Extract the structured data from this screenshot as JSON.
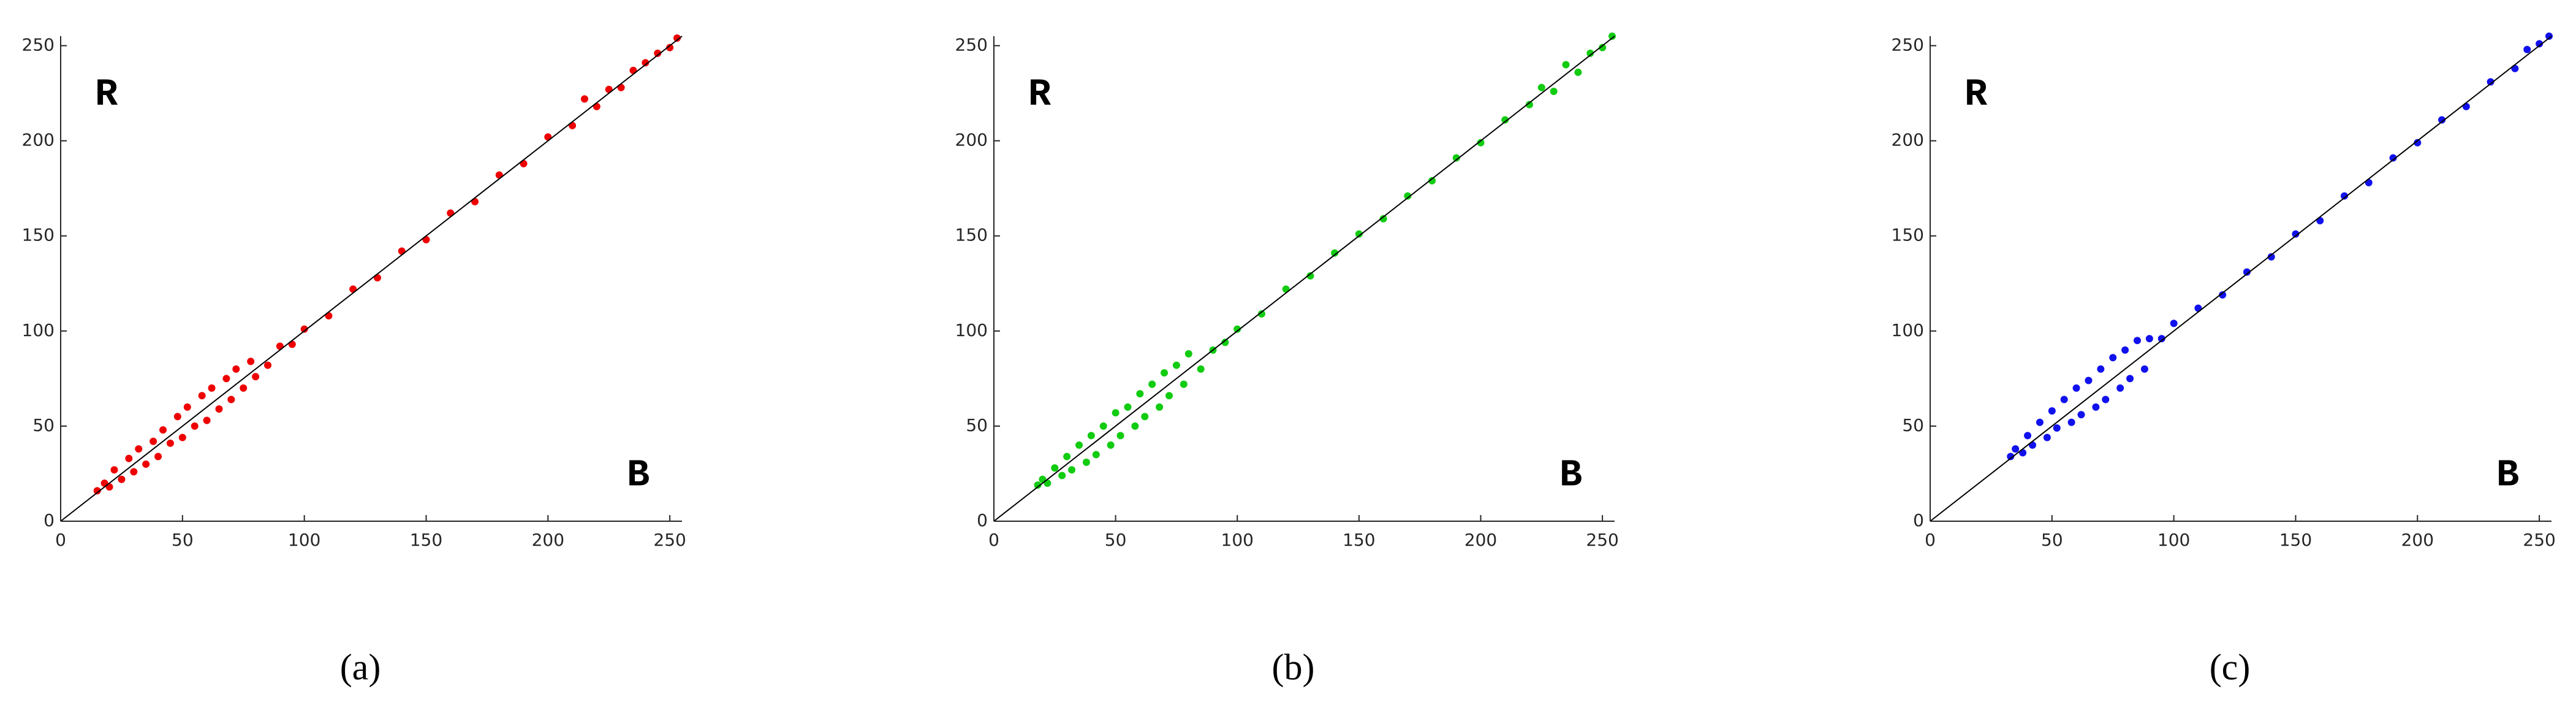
{
  "chart_data": [
    {
      "type": "scatter",
      "color": "#ee0000",
      "caption": "(a)",
      "annotations": [
        "R",
        "B"
      ],
      "xlim": [
        0,
        255
      ],
      "ylim": [
        0,
        255
      ],
      "xticks": [
        0,
        50,
        100,
        150,
        200,
        250
      ],
      "yticks": [
        0,
        50,
        100,
        150,
        200,
        250
      ],
      "x": [
        15,
        18,
        20,
        22,
        25,
        28,
        30,
        32,
        35,
        38,
        40,
        42,
        45,
        48,
        50,
        52,
        55,
        58,
        60,
        62,
        65,
        68,
        70,
        72,
        75,
        78,
        80,
        85,
        90,
        95,
        100,
        110,
        120,
        130,
        140,
        150,
        160,
        170,
        180,
        190,
        200,
        210,
        215,
        220,
        225,
        230,
        235,
        240,
        245,
        250,
        253
      ],
      "y": [
        16,
        20,
        18,
        27,
        22,
        33,
        26,
        38,
        30,
        42,
        34,
        48,
        41,
        55,
        44,
        60,
        50,
        66,
        53,
        70,
        59,
        75,
        64,
        80,
        70,
        84,
        76,
        82,
        92,
        93,
        101,
        108,
        122,
        128,
        142,
        148,
        162,
        168,
        182,
        188,
        202,
        208,
        222,
        218,
        227,
        228,
        237,
        241,
        246,
        249,
        254
      ]
    },
    {
      "type": "scatter",
      "color": "#11cc11",
      "caption": "(b)",
      "annotations": [
        "R",
        "B"
      ],
      "xlim": [
        0,
        255
      ],
      "ylim": [
        0,
        255
      ],
      "xticks": [
        0,
        50,
        100,
        150,
        200,
        250
      ],
      "yticks": [
        0,
        50,
        100,
        150,
        200,
        250
      ],
      "x": [
        18,
        20,
        22,
        25,
        28,
        30,
        32,
        35,
        38,
        40,
        42,
        45,
        48,
        50,
        52,
        55,
        58,
        60,
        62,
        65,
        68,
        70,
        72,
        75,
        78,
        80,
        85,
        90,
        95,
        100,
        110,
        120,
        130,
        140,
        150,
        160,
        170,
        180,
        190,
        200,
        210,
        220,
        225,
        230,
        235,
        240,
        245,
        250,
        254
      ],
      "y": [
        19,
        22,
        20,
        28,
        24,
        34,
        27,
        40,
        31,
        45,
        35,
        50,
        40,
        57,
        45,
        60,
        50,
        67,
        55,
        72,
        60,
        78,
        66,
        82,
        72,
        88,
        80,
        90,
        94,
        101,
        109,
        122,
        129,
        141,
        151,
        159,
        171,
        179,
        191,
        199,
        211,
        219,
        228,
        226,
        240,
        236,
        246,
        249,
        255
      ]
    },
    {
      "type": "scatter",
      "color": "#1111ee",
      "caption": "(c)",
      "annotations": [
        "R",
        "B"
      ],
      "xlim": [
        0,
        255
      ],
      "ylim": [
        0,
        255
      ],
      "xticks": [
        0,
        50,
        100,
        150,
        200,
        250
      ],
      "yticks": [
        0,
        50,
        100,
        150,
        200,
        250
      ],
      "x": [
        33,
        35,
        38,
        40,
        42,
        45,
        48,
        50,
        52,
        55,
        58,
        60,
        62,
        65,
        68,
        70,
        72,
        75,
        78,
        80,
        82,
        85,
        88,
        90,
        95,
        100,
        110,
        120,
        130,
        140,
        150,
        160,
        170,
        180,
        190,
        200,
        210,
        220,
        230,
        240,
        245,
        250,
        254
      ],
      "y": [
        34,
        38,
        36,
        45,
        40,
        52,
        44,
        58,
        49,
        64,
        52,
        70,
        56,
        74,
        60,
        80,
        64,
        86,
        70,
        90,
        75,
        95,
        80,
        96,
        96,
        104,
        112,
        119,
        131,
        139,
        151,
        158,
        171,
        178,
        191,
        199,
        211,
        218,
        231,
        238,
        248,
        251,
        255
      ]
    }
  ]
}
